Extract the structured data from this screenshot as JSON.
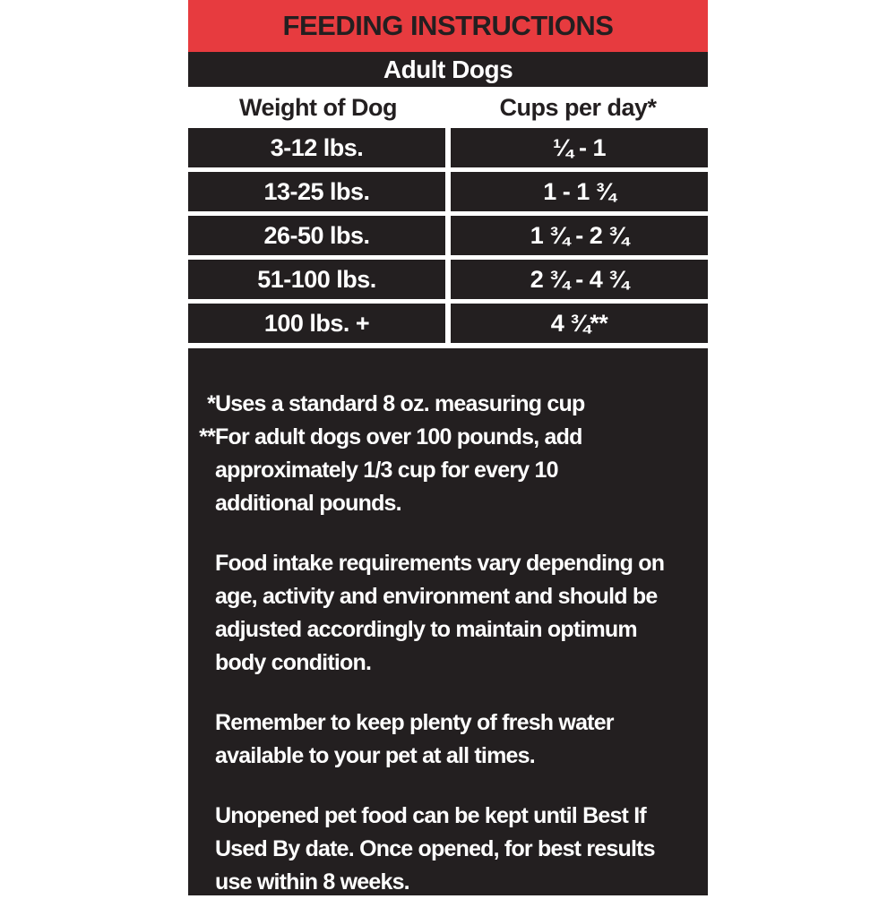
{
  "header": {
    "title": "FEEDING INSTRUCTIONS",
    "subtitle": "Adult Dogs"
  },
  "table": {
    "columns": [
      "Weight of Dog",
      "Cups per day*"
    ],
    "rows": [
      {
        "weight": "3-12 lbs.",
        "cups": "¼ - 1"
      },
      {
        "weight": "13-25 lbs.",
        "cups": "1 - 1 ¾"
      },
      {
        "weight": "26-50 lbs.",
        "cups": "1 ¾ - 2 ¾"
      },
      {
        "weight": "51-100 lbs.",
        "cups": "2 ¾ - 4 ¾"
      },
      {
        "weight": "100 lbs. +",
        "cups": "4 ¾**"
      }
    ]
  },
  "notes": {
    "footnotes": [
      {
        "marker": "*",
        "lines": [
          "Uses a standard 8 oz. measuring cup"
        ]
      },
      {
        "marker": "**",
        "lines": [
          "For adult dogs over 100 pounds, add",
          "approximately 1/3 cup for every 10",
          "additional pounds."
        ]
      }
    ],
    "paragraphs": [
      {
        "lines": [
          "Food intake requirements vary depending on",
          "age, activity and environment and should be",
          "adjusted accordingly to maintain optimum",
          "body condition."
        ]
      },
      {
        "lines": [
          "Remember to keep plenty of fresh water",
          "available to your pet at all times."
        ]
      },
      {
        "lines": [
          "Unopened pet food can be kept until Best If",
          "Used By date. Once opened, for best results",
          "use within 8 weeks."
        ]
      }
    ]
  },
  "colors": {
    "accent_red": "#e73b3f",
    "label_black": "#231f20",
    "text_white": "#ffffff"
  }
}
